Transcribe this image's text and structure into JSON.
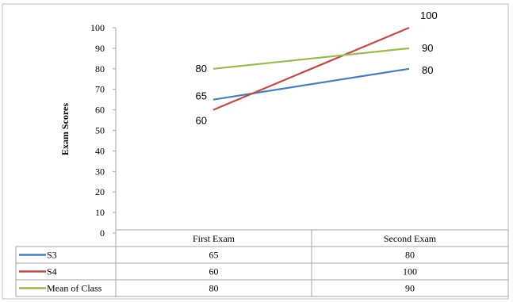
{
  "chart_data": {
    "type": "line",
    "title": "",
    "xlabel": "",
    "ylabel": "Exam Scores",
    "categories": [
      "First Exam",
      "Second Exam"
    ],
    "ylim": [
      0,
      100
    ],
    "yticks": [
      0,
      10,
      20,
      30,
      40,
      50,
      60,
      70,
      80,
      90,
      100
    ],
    "grid": false,
    "legend": "data-table-below",
    "series": [
      {
        "name": "S3",
        "values": [
          65,
          80
        ],
        "color": "#4a7ebb",
        "labels": [
          "65",
          "80"
        ]
      },
      {
        "name": "S4",
        "values": [
          60,
          100
        ],
        "color": "#be4b48",
        "labels": [
          "60",
          "100"
        ]
      },
      {
        "name": "Mean of Class",
        "values": [
          80,
          90
        ],
        "color": "#98b954",
        "labels": [
          "80",
          "90"
        ]
      }
    ]
  }
}
